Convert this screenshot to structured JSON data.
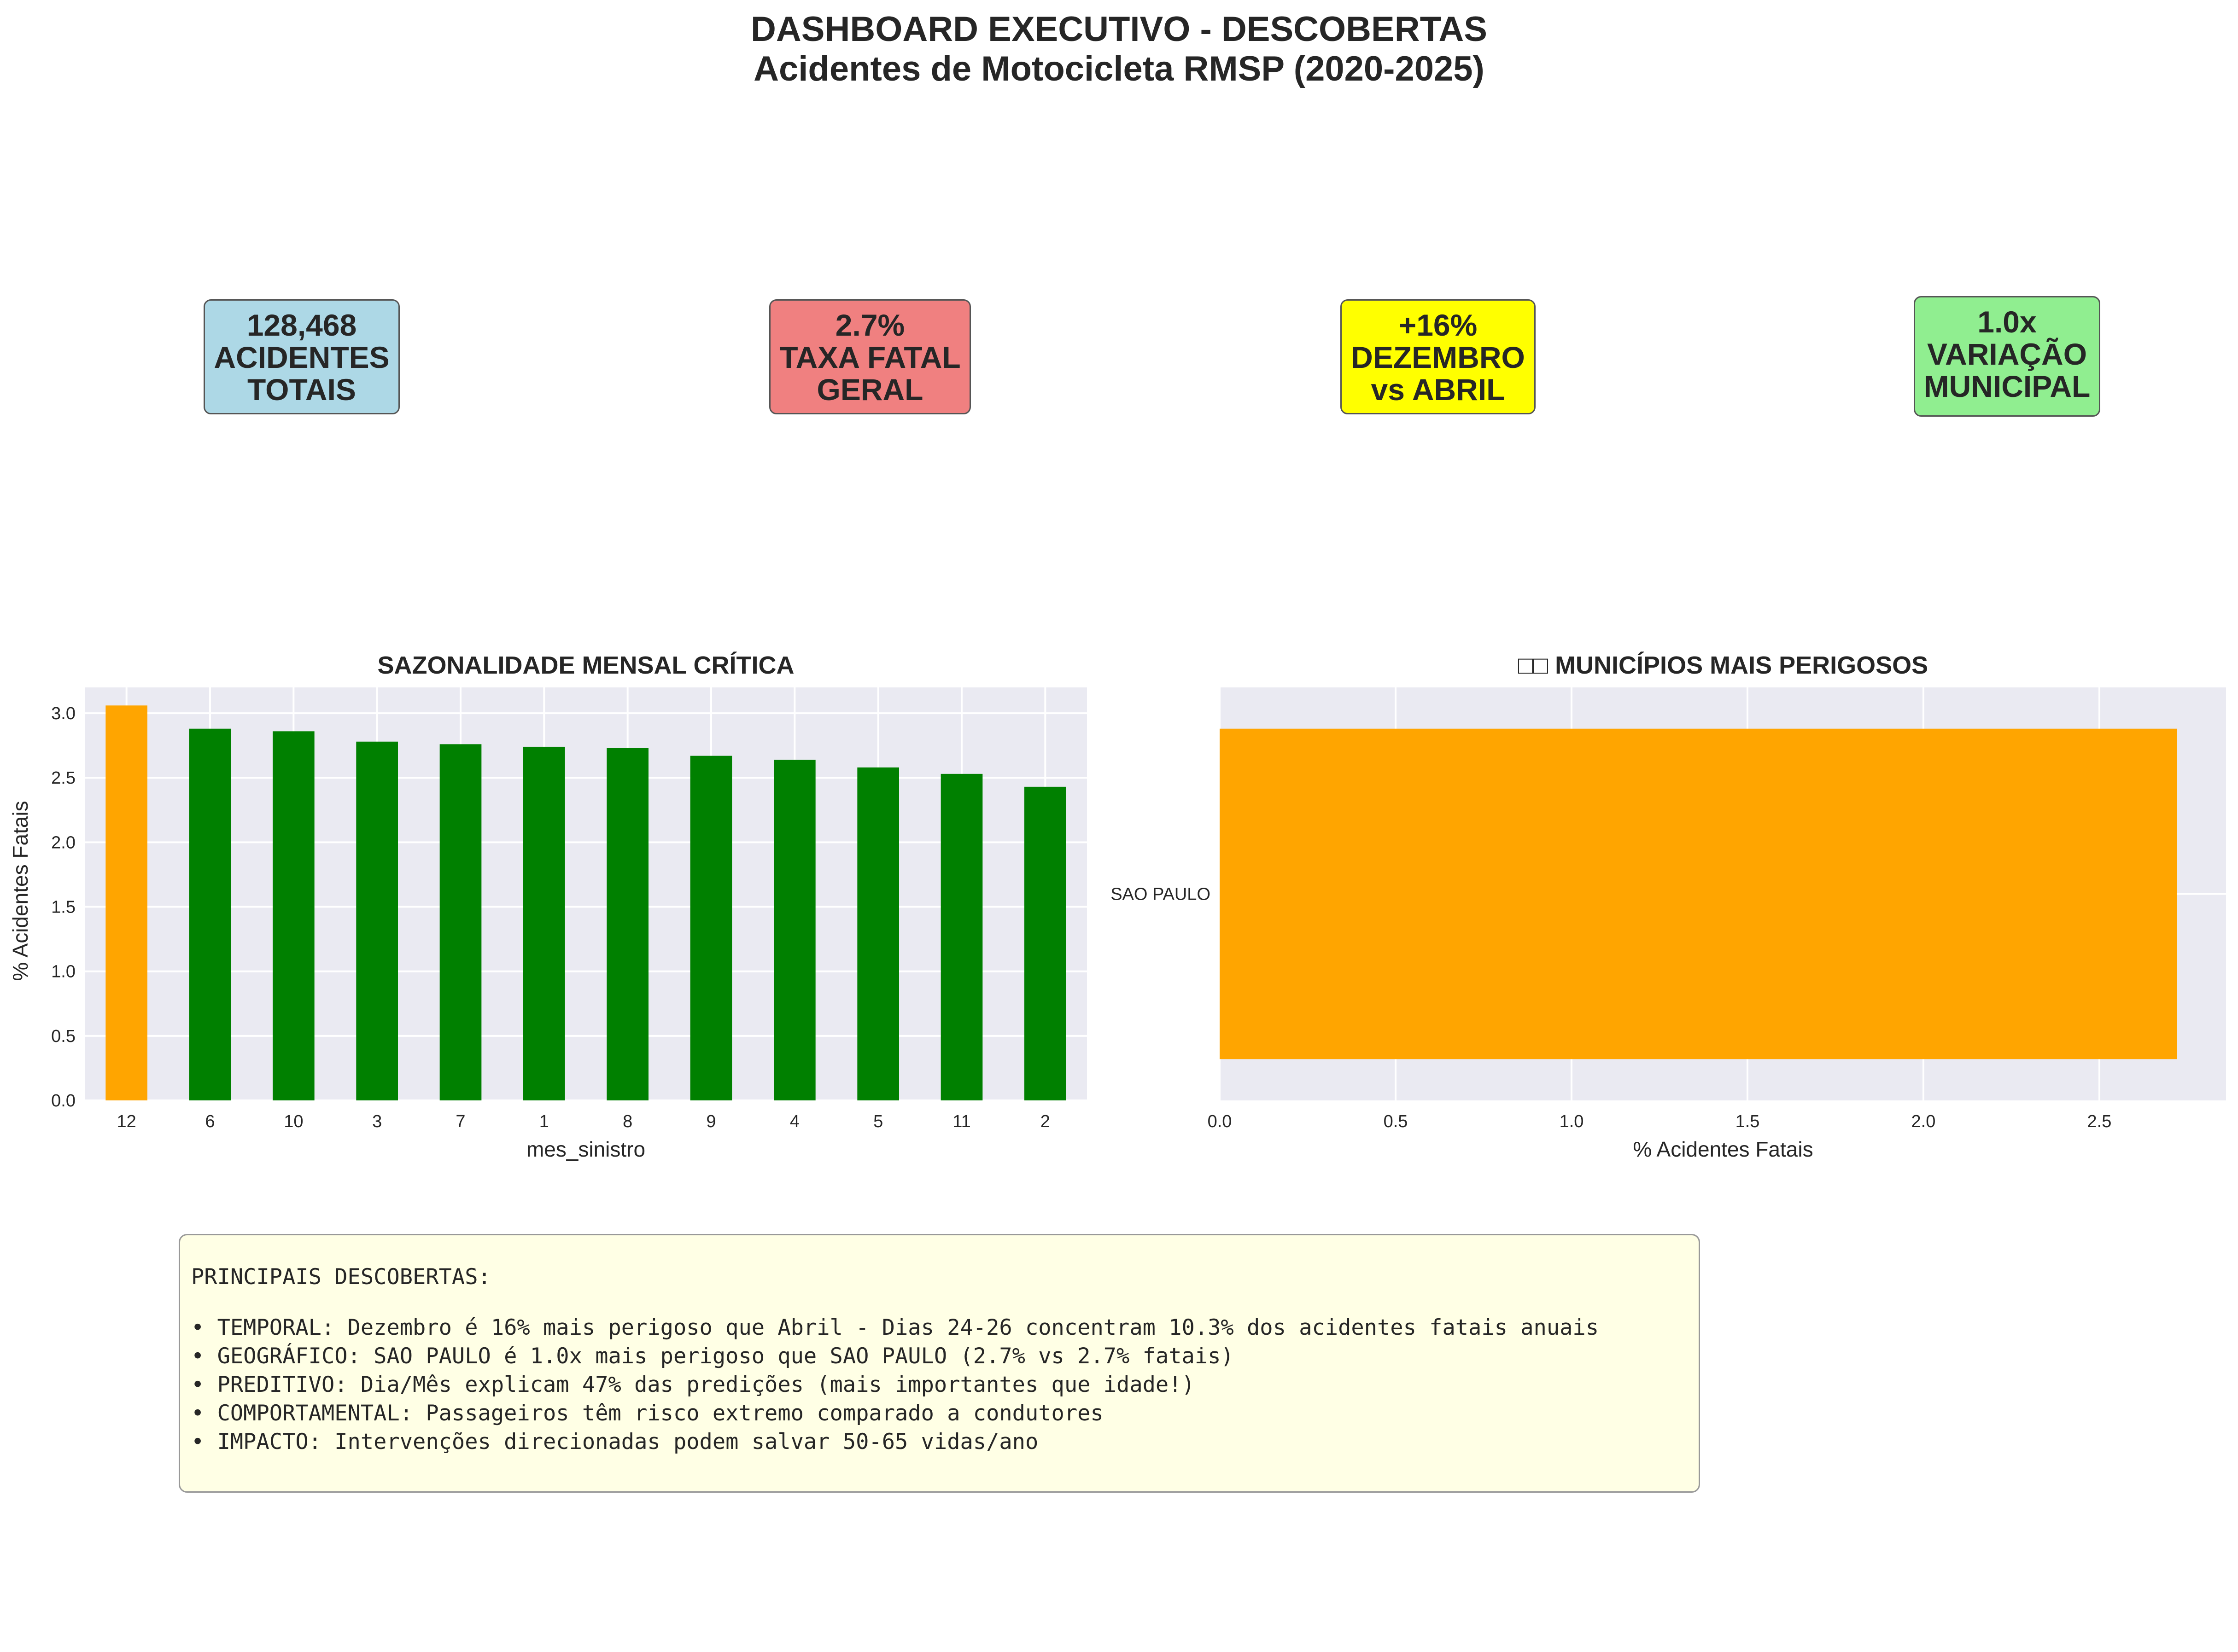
{
  "header": {
    "title_line1": "DASHBOARD EXECUTIVO - DESCOBERTAS",
    "title_line2": "Acidentes de Motocicleta RMSP (2020-2025)"
  },
  "kpis": [
    {
      "lines": [
        "128,468",
        "ACIDENTES",
        "TOTAIS"
      ],
      "color": "#add8e6"
    },
    {
      "lines": [
        "2.7%",
        "TAXA FATAL",
        "GERAL"
      ],
      "color": "#f08080"
    },
    {
      "lines": [
        "+16%",
        "DEZEMBRO",
        "vs ABRIL"
      ],
      "color": "#ffff00"
    },
    {
      "lines": [
        "1.0x",
        "VARIAÇÃO",
        "MUNICIPAL"
      ],
      "color": "#90ee90"
    }
  ],
  "chart_data": [
    {
      "type": "bar",
      "title": "SAZONALIDADE MENSAL CRÍTICA",
      "xlabel": "mes_sinistro",
      "ylabel": "% Acidentes Fatais",
      "categories": [
        "12",
        "6",
        "10",
        "3",
        "7",
        "1",
        "8",
        "9",
        "4",
        "5",
        "11",
        "2"
      ],
      "values": [
        3.06,
        2.88,
        2.86,
        2.78,
        2.76,
        2.74,
        2.73,
        2.67,
        2.64,
        2.58,
        2.53,
        2.43
      ],
      "colors": [
        "#ffa500",
        "#008000",
        "#008000",
        "#008000",
        "#008000",
        "#008000",
        "#008000",
        "#008000",
        "#008000",
        "#008000",
        "#008000",
        "#008000"
      ],
      "ylim": [
        0,
        3.2
      ],
      "yticks": [
        "0.0",
        "0.5",
        "1.0",
        "1.5",
        "2.0",
        "2.5",
        "3.0"
      ],
      "grid": true
    },
    {
      "type": "bar",
      "orientation": "horizontal",
      "title": "□□ MUNICÍPIOS MAIS PERIGOSOS",
      "xlabel": "% Acidentes Fatais",
      "ylabel": "",
      "categories": [
        "SAO PAULO"
      ],
      "values": [
        2.72
      ],
      "colors": [
        "#ffa500"
      ],
      "xlim": [
        0,
        2.86
      ],
      "xticks": [
        "0.0",
        "0.5",
        "1.0",
        "1.5",
        "2.0",
        "2.5"
      ],
      "grid": true
    }
  ],
  "findings": {
    "heading": "PRINCIPAIS DESCOBERTAS:",
    "items": [
      "• TEMPORAL: Dezembro é 16% mais perigoso que Abril - Dias 24-26 concentram 10.3% dos acidentes fatais anuais",
      "• GEOGRÁFICO: SAO PAULO é 1.0x mais perigoso que SAO PAULO (2.7% vs 2.7% fatais)",
      "• PREDITIVO: Dia/Mês explicam 47% das predições (mais importantes que idade!)",
      "• COMPORTAMENTAL: Passageiros têm risco extremo comparado a condutores",
      "• IMPACTO: Intervenções direcionadas podem salvar 50-65 vidas/ano"
    ]
  }
}
